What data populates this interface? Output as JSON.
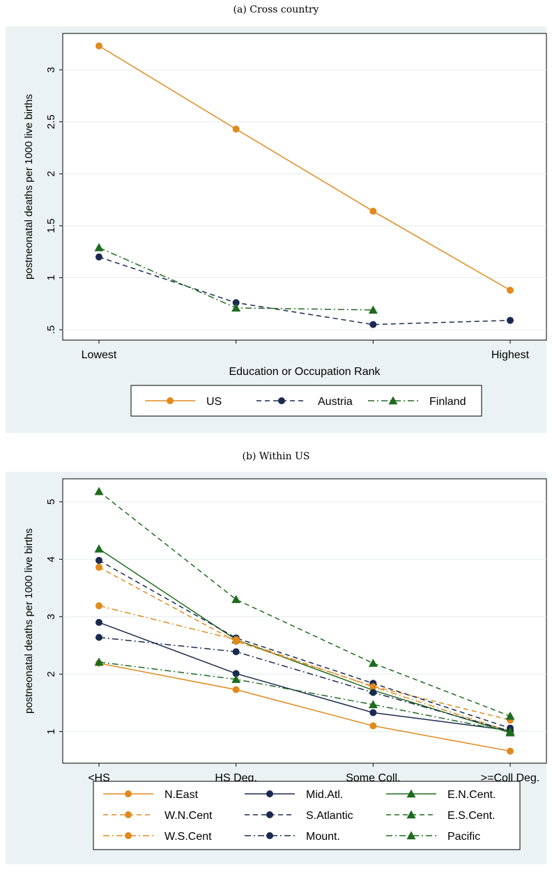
{
  "chart_data": [
    {
      "type": "line",
      "title": "(a) Cross country",
      "xlabel": "Education or Occupation Rank",
      "ylabel": "postneonatal deaths per 1000 live births",
      "categories": [
        "Lowest",
        "",
        "",
        "Highest"
      ],
      "yticks": [
        ".5",
        "1",
        "1.5",
        "2",
        "2.5",
        "3"
      ],
      "ylim": [
        0.4,
        3.35
      ],
      "grid": "horizontal",
      "legend_position": "bottom",
      "series": [
        {
          "name": "US",
          "values": [
            3.23,
            2.43,
            1.64,
            0.88
          ],
          "color": "#e08a1e",
          "dash": "solid",
          "marker": "circle"
        },
        {
          "name": "Austria",
          "values": [
            1.2,
            0.76,
            0.55,
            0.59
          ],
          "color": "#1a2a4f",
          "dash": "dash",
          "marker": "circle"
        },
        {
          "name": "Finland",
          "values": [
            1.29,
            0.71,
            0.69,
            null
          ],
          "color": "#1e6b1e",
          "dash": "dashdot",
          "marker": "triangle"
        }
      ]
    },
    {
      "type": "line",
      "title": "(b) Within US",
      "xlabel": "",
      "ylabel": "postneonatal deaths per 1000 live births",
      "categories": [
        "<HS",
        "HS Deg.",
        "Some Coll.",
        ">=Coll Deg."
      ],
      "yticks": [
        "1",
        "2",
        "3",
        "4",
        "5"
      ],
      "ylim": [
        0.45,
        5.4
      ],
      "grid": "horizontal",
      "legend_position": "bottom",
      "series": [
        {
          "name": "N.East",
          "values": [
            2.19,
            1.73,
            1.1,
            0.66
          ],
          "color": "#e08a1e",
          "dash": "solid",
          "marker": "circle"
        },
        {
          "name": "Mid.Atl.",
          "values": [
            2.9,
            2.01,
            1.33,
            1.02
          ],
          "color": "#1a2a4f",
          "dash": "solid",
          "marker": "circle"
        },
        {
          "name": "E.N.Cent.",
          "values": [
            4.18,
            2.6,
            1.72,
            0.98
          ],
          "color": "#1e6b1e",
          "dash": "solid",
          "marker": "triangle"
        },
        {
          "name": "W.N.Cent",
          "values": [
            3.86,
            2.57,
            1.79,
            1.2
          ],
          "color": "#e08a1e",
          "dash": "dash",
          "marker": "circle"
        },
        {
          "name": "S.Atlantic",
          "values": [
            3.98,
            2.63,
            1.84,
            1.06
          ],
          "color": "#1a2a4f",
          "dash": "dash",
          "marker": "circle"
        },
        {
          "name": "E.S.Cent.",
          "values": [
            5.18,
            3.3,
            2.19,
            1.27
          ],
          "color": "#1e6b1e",
          "dash": "dash",
          "marker": "triangle"
        },
        {
          "name": "W.S.Cent",
          "values": [
            3.19,
            2.6,
            1.78,
            1.0
          ],
          "color": "#e08a1e",
          "dash": "dashdot",
          "marker": "circle"
        },
        {
          "name": "Mount.",
          "values": [
            2.64,
            2.39,
            1.68,
            1.01
          ],
          "color": "#1a2a4f",
          "dash": "dashdot",
          "marker": "circle"
        },
        {
          "name": "Pacific",
          "values": [
            2.21,
            1.91,
            1.47,
            1.0
          ],
          "color": "#1e6b1e",
          "dash": "dashdot",
          "marker": "triangle"
        }
      ]
    }
  ]
}
